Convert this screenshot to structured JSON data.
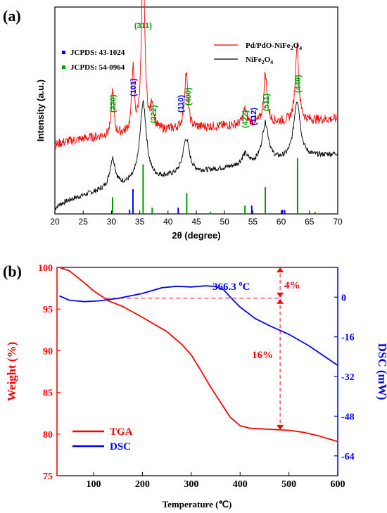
{
  "chart_data": [
    {
      "panel_label": "(a)",
      "type": "line",
      "xlabel": "2θ (degree)",
      "ylabel": "Intensity (a.u.)",
      "xlim": [
        20,
        70
      ],
      "xticks": [
        20,
        25,
        30,
        35,
        40,
        45,
        50,
        55,
        60,
        65,
        70
      ],
      "colors": {
        "pd": "#ff0000",
        "nife": "#000000",
        "ref_blue": "#0000ff",
        "ref_green": "#009900"
      },
      "series": [
        {
          "name": "Pd/PdO-NiFe",
          "name_sub": "2",
          "name_suffix": "O",
          "name_sub2": "4",
          "color": "#ff0000",
          "baseline": 0.33,
          "end": 0.46,
          "noise": 0.045,
          "peaks": [
            [
              30.2,
              0.22,
              0.25
            ],
            [
              33.8,
              0.3,
              0.25
            ],
            [
              35.6,
              0.83,
              0.35
            ],
            [
              37.2,
              0.12,
              0.3
            ],
            [
              43.2,
              0.27,
              0.35
            ],
            [
              53.6,
              0.07,
              0.4
            ],
            [
              57.2,
              0.24,
              0.35
            ],
            [
              62.8,
              0.38,
              0.35
            ]
          ]
        },
        {
          "name": "NiFe",
          "name_sub": "2",
          "name_suffix": "O",
          "name_sub2": "4",
          "color": "#000000",
          "baseline": 0.02,
          "end": 0.29,
          "noise": 0.025,
          "peaks": [
            [
              30.2,
              0.14,
              0.6
            ],
            [
              35.6,
              0.38,
              0.7
            ],
            [
              43.2,
              0.17,
              0.7
            ],
            [
              53.6,
              0.05,
              0.7
            ],
            [
              57.2,
              0.19,
              0.7
            ],
            [
              62.8,
              0.28,
              0.7
            ]
          ]
        }
      ],
      "references": [
        {
          "label": "JCPDS: 43-1024",
          "color": "#0000ff",
          "lines": [
            [
              33.2,
              0.02
            ],
            [
              33.8,
              0.12
            ],
            [
              41.8,
              0.03
            ],
            [
              54.8,
              0.04
            ],
            [
              60.2,
              0.02
            ],
            [
              60.6,
              0.02
            ]
          ]
        },
        {
          "label": "JCPDS: 54-0964",
          "color": "#009900",
          "lines": [
            [
              30.2,
              0.08
            ],
            [
              35.6,
              0.24
            ],
            [
              37.2,
              0.03
            ],
            [
              43.3,
              0.1
            ],
            [
              47.5,
              0.01
            ],
            [
              53.6,
              0.04
            ],
            [
              57.2,
              0.13
            ],
            [
              62.9,
              0.27
            ],
            [
              66.0,
              0.01
            ]
          ]
        }
      ],
      "peak_labels": [
        {
          "text": "(311)",
          "x": 35.6,
          "color": "#009900"
        },
        {
          "text": "(220)",
          "x": 30.2,
          "color": "#009900"
        },
        {
          "text": "(101)",
          "x": 33.8,
          "color": "#0000ff"
        },
        {
          "text": "(222)",
          "x": 37.4,
          "color": "#009900"
        },
        {
          "text": "(110)",
          "x": 42.2,
          "color": "#0000ff"
        },
        {
          "text": "(400)",
          "x": 43.5,
          "color": "#009900"
        },
        {
          "text": "(422)",
          "x": 53.6,
          "color": "#009900"
        },
        {
          "text": "(112)",
          "x": 55.1,
          "color": "#0000ff"
        },
        {
          "text": "(511)",
          "x": 57.3,
          "color": "#009900"
        },
        {
          "text": "(440)",
          "x": 62.9,
          "color": "#009900"
        }
      ]
    },
    {
      "panel_label": "(b)",
      "type": "line",
      "xlabel": "Temperature (℃)",
      "ylabel_left": "Weight (%)",
      "ylabel_right": "DSC (mW)",
      "xlim": [
        25,
        600
      ],
      "xticks": [
        100,
        200,
        300,
        400,
        500,
        600
      ],
      "ylim_left": [
        75,
        100
      ],
      "yticks_left": [
        75,
        80,
        85,
        90,
        95,
        100
      ],
      "ylim_right": [
        -72,
        12
      ],
      "yticks_right": [
        0,
        -16,
        -32,
        -48,
        -64
      ],
      "series": [
        {
          "name": "TGA",
          "axis": "left",
          "color": "#ff0000",
          "points": [
            [
              30,
              100
            ],
            [
              50,
              99.6
            ],
            [
              80,
              98.2
            ],
            [
              100,
              97.2
            ],
            [
              130,
              96.0
            ],
            [
              160,
              95.3
            ],
            [
              200,
              94.0
            ],
            [
              250,
              92.3
            ],
            [
              280,
              90.8
            ],
            [
              300,
              89.5
            ],
            [
              320,
              87.6
            ],
            [
              340,
              85.6
            ],
            [
              360,
              83.8
            ],
            [
              380,
              82.0
            ],
            [
              400,
              81.0
            ],
            [
              420,
              80.7
            ],
            [
              450,
              80.6
            ],
            [
              500,
              80.45
            ],
            [
              530,
              80.2
            ],
            [
              560,
              79.8
            ],
            [
              600,
              79.1
            ]
          ]
        },
        {
          "name": "DSC",
          "axis": "right",
          "color": "#0000ff",
          "points": [
            [
              30,
              0.5
            ],
            [
              50,
              -1.2
            ],
            [
              80,
              -1.8
            ],
            [
              110,
              -1.5
            ],
            [
              150,
              -0.5
            ],
            [
              200,
              1.5
            ],
            [
              240,
              3.8
            ],
            [
              270,
              4.4
            ],
            [
              300,
              4.1
            ],
            [
              330,
              4.6
            ],
            [
              350,
              4.3
            ],
            [
              366.3,
              3.0
            ],
            [
              380,
              0
            ],
            [
              400,
              -4.0
            ],
            [
              430,
              -8.5
            ],
            [
              460,
              -11.5
            ],
            [
              500,
              -15.0
            ],
            [
              540,
              -19.5
            ],
            [
              570,
              -23.5
            ],
            [
              600,
              -27.5
            ]
          ]
        }
      ],
      "annotations": {
        "peak_text": "366.3 ",
        "peak_sup": "o",
        "peak_unit": "C",
        "step1_text": "4%",
        "step2_text": "16%"
      }
    }
  ]
}
